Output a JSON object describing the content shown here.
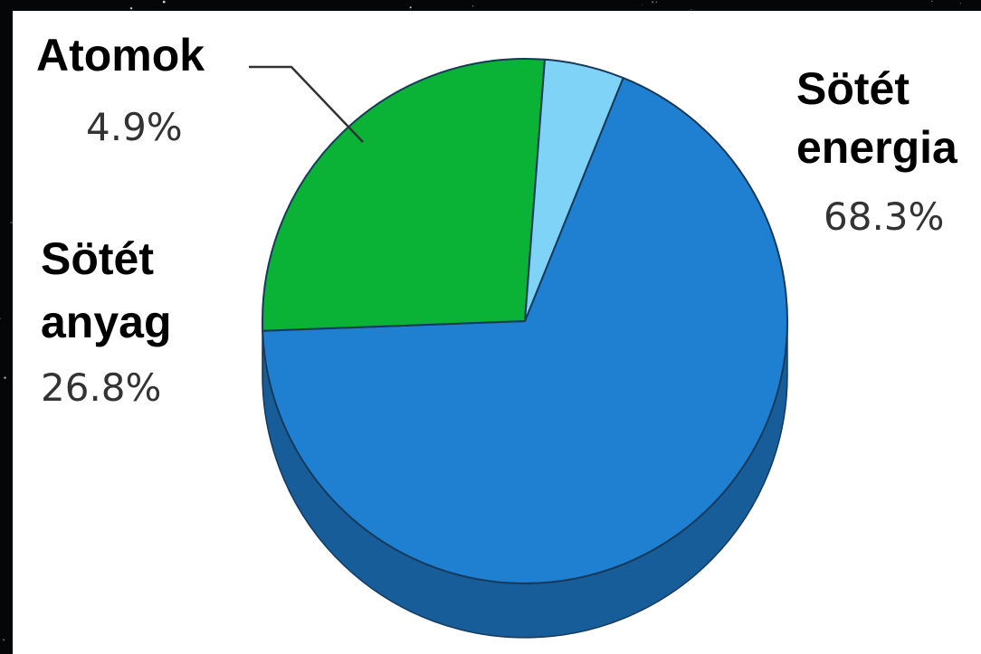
{
  "colors": {
    "background": "#050608",
    "panel": "#ffffff",
    "outline": "#163a5c"
  },
  "chart_data": {
    "type": "pie",
    "style": "3d",
    "title": "",
    "slices": [
      {
        "label_lines": [
          "Sötét",
          "energia"
        ],
        "value": 68.3,
        "display": "68.3%",
        "color": "#1f7fd0",
        "side_color": "#175d99"
      },
      {
        "label_lines": [
          "Sötét",
          "anyag"
        ],
        "value": 26.8,
        "display": "26.8%",
        "color": "#0ab236",
        "side_color": "#078a2a"
      },
      {
        "label_lines": [
          "Atomok"
        ],
        "value": 4.9,
        "display": "4.9%",
        "color": "#7fd3f7",
        "side_color": "#5aa7c9"
      }
    ]
  }
}
